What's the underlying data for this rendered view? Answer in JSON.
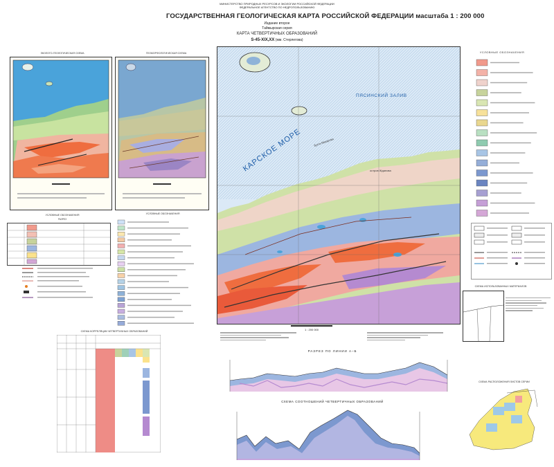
{
  "header": {
    "agency_line1": "МИНИСТЕРСТВО ПРИРОДНЫХ РЕСУРСОВ И ЭКОЛОГИИ РОССИЙСКОЙ ФЕДЕРАЦИИ",
    "agency_line2": "ФЕДЕРАЛЬНОЕ АГЕНТСТВО ПО НЕДРОПОЛЬЗОВАНИЮ",
    "title": "ГОСУДАРСТВЕННАЯ ГЕОЛОГИЧЕСКАЯ КАРТА РОССИЙСКОЙ ФЕДЕРАЦИИ масштаба 1 : 200 000",
    "edition": "Издание второе",
    "series": "Таймырская серия",
    "map_name": "КАРТА ЧЕТВЕРТИЧНЫХ ОБРАЗОВАНИЙ",
    "sheet": "S-45-XIX,XX",
    "sheet_suffix": "(мм. Стерлегова)"
  },
  "inset_left": {
    "title": "ЭКОЛОГО-ГЕОЛОГИЧЕСКАЯ СХЕМА"
  },
  "inset_right": {
    "title": "ГЕОМОРФОЛОГИЧЕСКАЯ СХЕМА"
  },
  "main_map": {
    "sea_label": "КАРСКОЕ МОРЕ",
    "bay_label": "ПЯСИНСКИЙ ЗАЛИВ",
    "place_label1": "бухта Макарова",
    "place_label2": "остров Жданова",
    "scale_text": "1 : 200 000"
  },
  "legend_left": {
    "title": "УСЛОВНЫЕ ОБОЗНАЧЕНИЯ",
    "subtitle": "РАЗРЕЗ"
  },
  "legend_mid": {
    "title": "УСЛОВНЫЕ ОБОЗНАЧЕНИЯ"
  },
  "legend_right": {
    "title": "УСЛОВНЫЕ ОБОЗНАЧЕНИЯ"
  },
  "correlation": {
    "title": "СХЕМА КОРРЕЛЯЦИИ ЧЕТВЕРТИЧНЫХ ОБРАЗОВАНИЙ"
  },
  "section1": {
    "title": "РАЗРЕЗ ПО ЛИНИИ А–Б"
  },
  "section2": {
    "title": "СХЕМА СООТНОШЕНИЙ ЧЕТВЕРТИЧНЫХ ОБРАЗОВАНИЙ"
  },
  "materials": {
    "title": "СХЕМА ИСПОЛЬЗОВАННЫХ МАТЕРИАЛОВ"
  },
  "sheets_index": {
    "title": "СХЕМА РАСПОЛОЖЕНИЯ ЛИСТОВ СЕРИИ"
  },
  "colors": {
    "sea": "#4aa3da",
    "land_green": "#9fcf8c",
    "land_pink": "#f0a9a0",
    "land_orange": "#ef6d3f",
    "land_blue": "#9cb6e0",
    "land_yellow": "#fbe28c",
    "purple": "#b58ad0",
    "red_block": "#ee8c86"
  },
  "legend_colors": [
    "#f19a8c",
    "#f3b2a8",
    "#efd2cc",
    "#c7d39c",
    "#d9e6b3",
    "#f7e19a",
    "#e9d78f",
    "#b9e0c2",
    "#8fcbb0",
    "#a8c5e5",
    "#95aed8",
    "#7c98cf",
    "#6b85c1",
    "#a7a0d2",
    "#c59fd6",
    "#d4a7d6"
  ],
  "mid_legend_colors": [
    "#cfe2f7",
    "#bfe5c8",
    "#fbe7b0",
    "#f3c9a3",
    "#f2b0b0",
    "#d7e7a8",
    "#c5d8ef",
    "#e7d0f1",
    "#cbe0a4",
    "#f8d2a8",
    "#b6d3e8",
    "#9fc4e2",
    "#8fb2d8",
    "#7fa2d2",
    "#b8a3d6",
    "#c8aee0",
    "#a9bce0",
    "#96abd9"
  ]
}
